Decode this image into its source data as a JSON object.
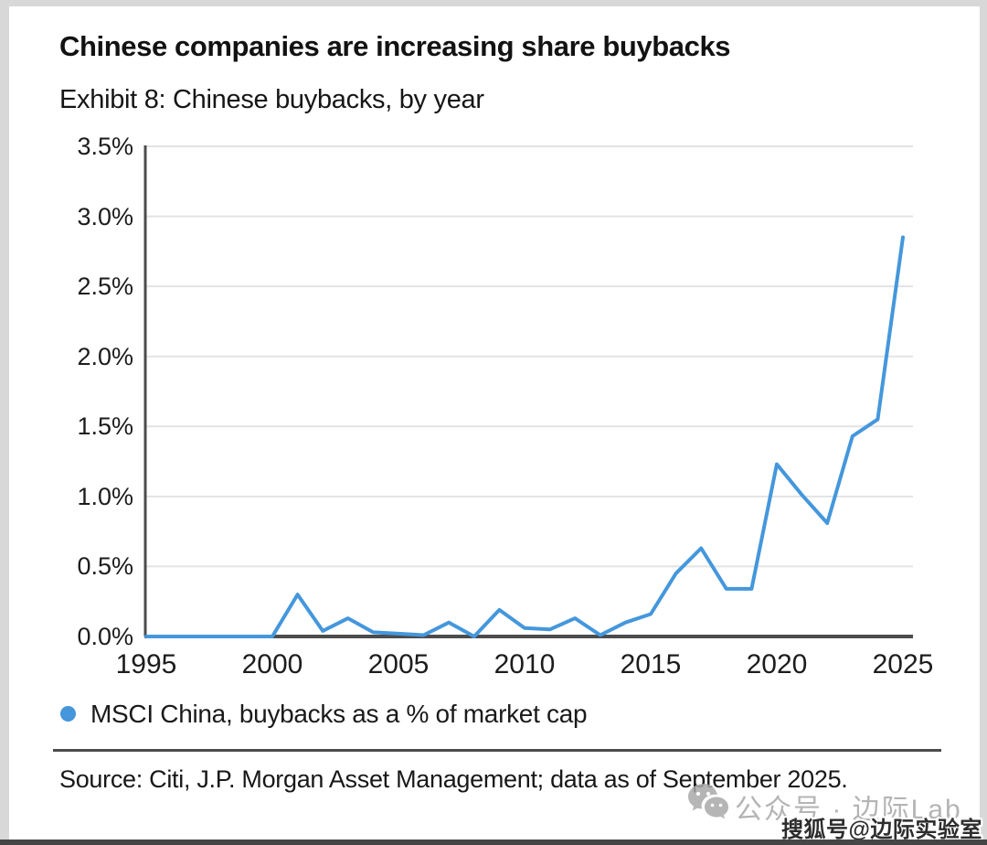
{
  "header": {
    "title": "Chinese companies are increasing share buybacks",
    "subtitle": "Exhibit 8: Chinese buybacks, by year"
  },
  "legend": {
    "label": "MSCI China, buybacks as a % of market cap",
    "marker_color": "#4596DB"
  },
  "source": {
    "text": "Source: Citi, J.P. Morgan Asset Management; data as of September 2025."
  },
  "watermarks": {
    "wechat": "公众号 · 边际Lab",
    "sohu": "搜狐号@边际实验室"
  },
  "colors": {
    "line": "#4497DC",
    "legend_dot": "#4596DB",
    "grid": "#e3e3e3",
    "axis": "#4c4c4c",
    "text": "#1a1a1a",
    "watermark_gray": "#b4b4b4"
  },
  "chart_data": {
    "type": "line",
    "title": "Exhibit 8: Chinese buybacks, by year",
    "xlabel": "",
    "ylabel": "Buybacks as a % of market cap",
    "xlim": [
      1995,
      2025
    ],
    "ylim": [
      0,
      3.5
    ],
    "grid": true,
    "legend_position": "bottom",
    "unit": "%",
    "x_tick_years": [
      1995,
      2000,
      2005,
      2010,
      2015,
      2020,
      2025
    ],
    "x_tick_labels": [
      "1995",
      "2000",
      "2005",
      "2010",
      "2015",
      "2020",
      "2025"
    ],
    "y_tick_values": [
      3.5,
      3.0,
      2.5,
      2.0,
      1.5,
      1.0,
      0.5,
      0.0
    ],
    "y_tick_labels": [
      "3.5%",
      "3.0%",
      "2.5%",
      "2.0%",
      "1.5%",
      "1.0%",
      "0.5%",
      "0.0%"
    ],
    "series": [
      {
        "name": "MSCI China, buybacks as a % of market cap",
        "x": [
          1995,
          1996,
          1997,
          1998,
          1999,
          2000,
          2001,
          2002,
          2003,
          2004,
          2005,
          2006,
          2007,
          2008,
          2009,
          2010,
          2011,
          2012,
          2013,
          2014,
          2015,
          2016,
          2017,
          2018,
          2019,
          2020,
          2021,
          2022,
          2023,
          2024,
          2025
        ],
        "values": [
          0.0,
          0.0,
          0.0,
          0.0,
          0.0,
          0.0,
          0.3,
          0.04,
          0.13,
          0.03,
          0.02,
          0.01,
          0.1,
          0.0,
          0.19,
          0.06,
          0.05,
          0.13,
          0.01,
          0.1,
          0.16,
          0.45,
          0.63,
          0.34,
          0.34,
          1.23,
          1.01,
          0.81,
          1.43,
          1.55,
          2.85
        ]
      }
    ]
  }
}
